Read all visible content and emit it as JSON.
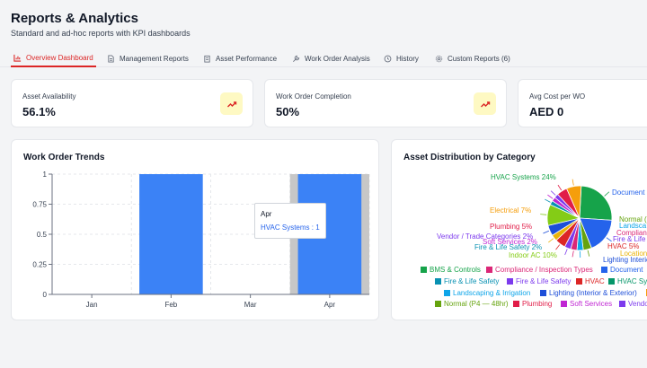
{
  "header": {
    "title": "Reports & Analytics",
    "subtitle": "Standard and ad-hoc reports with KPI dashboards"
  },
  "tabs": [
    {
      "label": "Overview Dashboard",
      "icon": "bar-chart-icon",
      "active": true
    },
    {
      "label": "Management Reports",
      "icon": "document-icon",
      "active": false
    },
    {
      "label": "Asset Performance",
      "icon": "clipboard-icon",
      "active": false
    },
    {
      "label": "Work Order Analysis",
      "icon": "wrench-icon",
      "active": false
    },
    {
      "label": "History",
      "icon": "history-icon",
      "active": false
    },
    {
      "label": "Custom Reports (6)",
      "icon": "gear-icon",
      "active": false
    }
  ],
  "kpis": [
    {
      "label": "Asset Availability",
      "value": "56.1%",
      "icon": "trending-up-icon"
    },
    {
      "label": "Work Order Completion",
      "value": "50%",
      "icon": "trending-up-icon"
    },
    {
      "label": "Avg Cost per WO",
      "value": "AED 0",
      "icon": ""
    }
  ],
  "work_order_trends": {
    "title": "Work Order Trends",
    "tooltip": {
      "title": "Apr",
      "text": "HVAC Systems : 1"
    }
  },
  "asset_distribution": {
    "title": "Asset Distribution by Category",
    "pie_labels": {
      "hvac24": "HVAC Systems 24%",
      "document": "Document",
      "electrical": "Electrical 7%",
      "plumbing": "Plumbing 5%",
      "vendor": "Vendor / Trade Categories 2%",
      "soft": "Soft Services 2%",
      "fire_left": "Fire & Life Safety 2%",
      "indoor": "Indoor AC 10%",
      "lighting": "Lighting Interior & E",
      "normal": "Normal (",
      "landsca": "Landsca",
      "complian": "Complian",
      "fire_right": "Fire & Life",
      "hvac5": "HVAC 5%",
      "location": "Location Types"
    },
    "legend": [
      {
        "label": "BMS & Controls",
        "color": "#16a34a"
      },
      {
        "label": "Compliance / Inspection Types",
        "color": "#db2777"
      },
      {
        "label": "Document",
        "color": "#2563eb"
      },
      {
        "label": "Fire & Life Safety",
        "color": "#0891b2"
      },
      {
        "label": "Fire & Life Safety",
        "color": "#7c3aed"
      },
      {
        "label": "HVAC",
        "color": "#dc2626"
      },
      {
        "label": "HVAC Sy",
        "color": "#059669"
      },
      {
        "label": "Landscaping & Irrigation",
        "color": "#0ea5e9"
      },
      {
        "label": "Lighting (Interior & Exterior)",
        "color": "#1d4ed8"
      },
      {
        "label": "Normal (P4 — 48hr)",
        "color": "#65a30d"
      },
      {
        "label": "Plumbing",
        "color": "#e11d48"
      },
      {
        "label": "Soft Services",
        "color": "#c026d3"
      },
      {
        "label": "Vendo",
        "color": "#7c3aed"
      }
    ]
  },
  "colors": {
    "accent": "#dc2626",
    "bar": "#3b82f6"
  },
  "chart_data": [
    {
      "type": "bar",
      "title": "Work Order Trends",
      "categories": [
        "Jan",
        "Feb",
        "Mar",
        "Apr"
      ],
      "series": [
        {
          "name": "HVAC Systems",
          "values": [
            0,
            1,
            0,
            1
          ]
        }
      ],
      "ylim": [
        0,
        1
      ],
      "yticks": [
        "0",
        "0.25",
        "0.5",
        "0.75",
        "1"
      ],
      "grid": true
    },
    {
      "type": "pie",
      "title": "Asset Distribution by Category",
      "slices": [
        {
          "label": "HVAC Systems",
          "value": 24,
          "color": "#16a34a"
        },
        {
          "label": "Document",
          "value": 17,
          "color": "#2563eb"
        },
        {
          "label": "Normal",
          "value": 4,
          "color": "#65a30d"
        },
        {
          "label": "Landscaping",
          "value": 3,
          "color": "#0ea5e9"
        },
        {
          "label": "Compliance",
          "value": 3,
          "color": "#db2777"
        },
        {
          "label": "Fire & Life Safety",
          "value": 3,
          "color": "#7c3aed"
        },
        {
          "label": "HVAC",
          "value": 5,
          "color": "#dc2626"
        },
        {
          "label": "Location Types",
          "value": 3,
          "color": "#eab308"
        },
        {
          "label": "Lighting Interior & Exterior",
          "value": 5,
          "color": "#1d4ed8"
        },
        {
          "label": "Indoor AC",
          "value": 10,
          "color": "#84cc16"
        },
        {
          "label": "Fire & Life Safety",
          "value": 2,
          "color": "#0891b2"
        },
        {
          "label": "Soft Services",
          "value": 2,
          "color": "#c026d3"
        },
        {
          "label": "Vendor / Trade Categories",
          "value": 2,
          "color": "#7c3aed"
        },
        {
          "label": "Plumbing",
          "value": 5,
          "color": "#e11d48"
        },
        {
          "label": "Electrical",
          "value": 7,
          "color": "#f59e0b"
        }
      ]
    }
  ]
}
